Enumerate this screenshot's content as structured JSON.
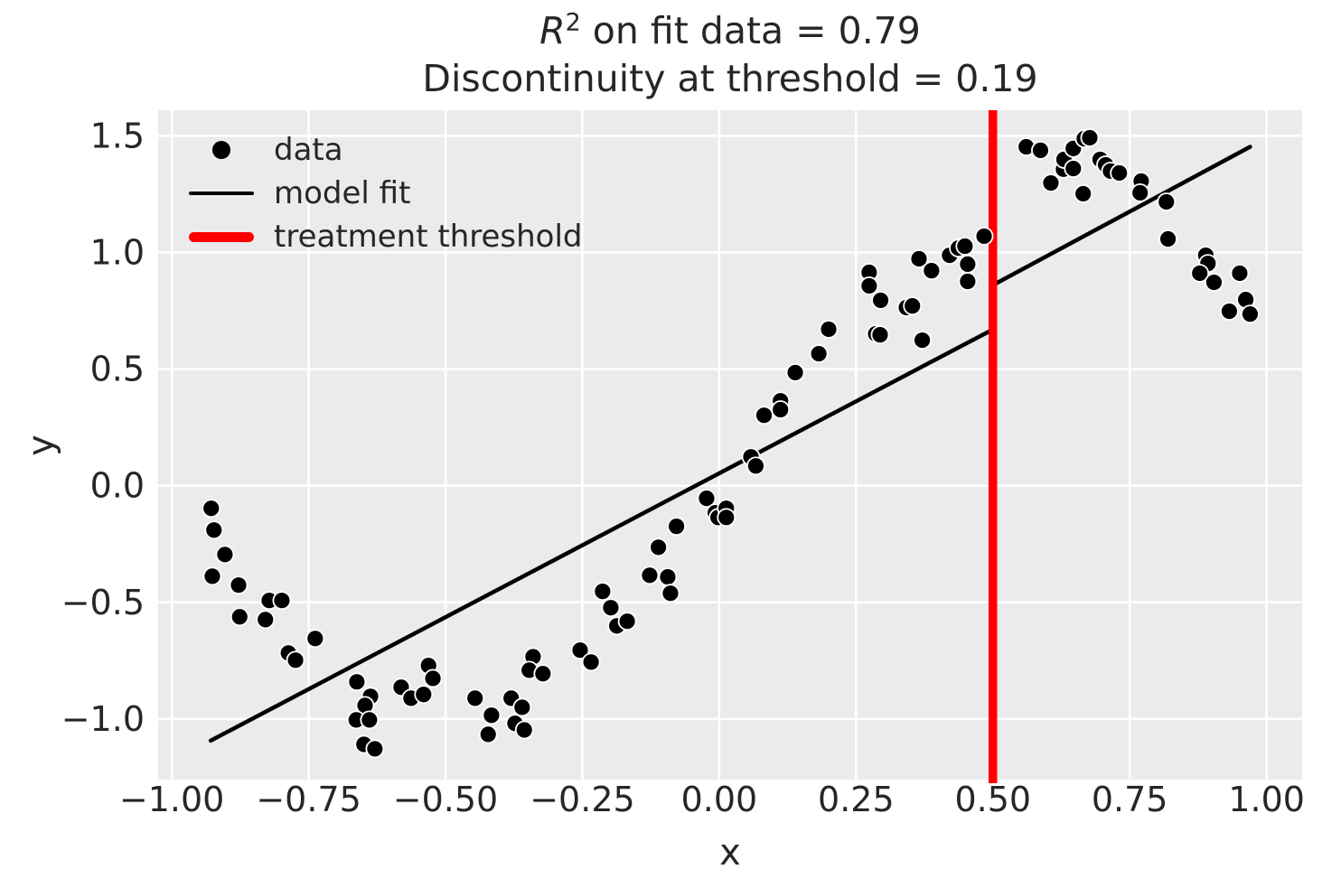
{
  "figure": {
    "title": {
      "math_var": "R",
      "exponent": "2",
      "line1_rest": " on fit data = 0.79",
      "line2": "Discontinuity at threshold = 0.19"
    }
  },
  "chart_data": {
    "type": "scatter",
    "title": "R^2 on fit data = 0.79\nDiscontinuity at threshold = 0.19",
    "r_squared": 0.79,
    "discontinuity": 0.19,
    "threshold_x": 0.5,
    "xlabel": "x",
    "ylabel": "y",
    "xlim": [
      -1.025,
      1.065
    ],
    "ylim": [
      -1.26,
      1.61
    ],
    "grid": true,
    "plot_background": "#ebebeb",
    "grid_color": "#ffffff",
    "text_color": "#262626",
    "xticks": {
      "values": [
        -1.0,
        -0.75,
        -0.5,
        -0.25,
        0.0,
        0.25,
        0.5,
        0.75,
        1.0
      ],
      "labels": [
        "−1.00",
        "−0.75",
        "−0.50",
        "−0.25",
        "0.00",
        "0.25",
        "0.50",
        "0.75",
        "1.00"
      ]
    },
    "yticks": {
      "values": [
        1.5,
        1.0,
        0.5,
        0.0,
        -0.5,
        -1.0
      ],
      "labels": [
        "1.5",
        "1.0",
        "0.5",
        "0.0",
        "−0.5",
        "−1.0"
      ]
    },
    "series": [
      {
        "name": "data",
        "type": "scatter",
        "color": "#000000",
        "marker_edge_color": "#ffffff",
        "points": [
          [
            -0.928,
            -0.097
          ],
          [
            -0.923,
            -0.19
          ],
          [
            -0.903,
            -0.295
          ],
          [
            -0.926,
            -0.388
          ],
          [
            -0.878,
            -0.426
          ],
          [
            -0.822,
            -0.492
          ],
          [
            -0.799,
            -0.492
          ],
          [
            -0.876,
            -0.562
          ],
          [
            -0.829,
            -0.574
          ],
          [
            -0.738,
            -0.655
          ],
          [
            -0.787,
            -0.717
          ],
          [
            -0.774,
            -0.748
          ],
          [
            -0.662,
            -0.841
          ],
          [
            -0.637,
            -0.903
          ],
          [
            -0.647,
            -0.942
          ],
          [
            -0.663,
            -1.004
          ],
          [
            -0.639,
            -1.004
          ],
          [
            -0.649,
            -1.109
          ],
          [
            -0.629,
            -1.128
          ],
          [
            -0.581,
            -0.864
          ],
          [
            -0.563,
            -0.911
          ],
          [
            -0.54,
            -0.895
          ],
          [
            -0.531,
            -0.771
          ],
          [
            -0.523,
            -0.826
          ],
          [
            -0.446,
            -0.911
          ],
          [
            -0.416,
            -0.984
          ],
          [
            -0.422,
            -1.066
          ],
          [
            -0.38,
            -0.911
          ],
          [
            -0.36,
            -0.95
          ],
          [
            -0.373,
            -1.019
          ],
          [
            -0.356,
            -1.047
          ],
          [
            -0.34,
            -0.733
          ],
          [
            -0.347,
            -0.791
          ],
          [
            -0.322,
            -0.806
          ],
          [
            -0.254,
            -0.705
          ],
          [
            -0.234,
            -0.756
          ],
          [
            -0.213,
            -0.453
          ],
          [
            -0.198,
            -0.523
          ],
          [
            -0.187,
            -0.601
          ],
          [
            -0.168,
            -0.581
          ],
          [
            -0.127,
            -0.384
          ],
          [
            -0.111,
            -0.264
          ],
          [
            -0.094,
            -0.391
          ],
          [
            -0.089,
            -0.461
          ],
          [
            -0.078,
            -0.174
          ],
          [
            -0.023,
            -0.054
          ],
          [
            -0.007,
            -0.116
          ],
          [
            -0.002,
            -0.136
          ],
          [
            0.013,
            -0.097
          ],
          [
            0.013,
            -0.136
          ],
          [
            0.058,
            0.124
          ],
          [
            0.067,
            0.085
          ],
          [
            0.082,
            0.302
          ],
          [
            0.112,
            0.364
          ],
          [
            0.112,
            0.326
          ],
          [
            0.139,
            0.485
          ],
          [
            0.182,
            0.566
          ],
          [
            0.2,
            0.671
          ],
          [
            0.274,
            0.915
          ],
          [
            0.274,
            0.857
          ],
          [
            0.286,
            0.651
          ],
          [
            0.294,
            0.647
          ],
          [
            0.295,
            0.795
          ],
          [
            0.342,
            0.764
          ],
          [
            0.353,
            0.771
          ],
          [
            0.365,
            0.973
          ],
          [
            0.371,
            0.624
          ],
          [
            0.388,
            0.922
          ],
          [
            0.421,
            0.988
          ],
          [
            0.437,
            1.019
          ],
          [
            0.449,
            1.027
          ],
          [
            0.454,
            0.95
          ],
          [
            0.454,
            0.876
          ],
          [
            0.484,
            1.07
          ],
          [
            0.561,
            1.453
          ],
          [
            0.587,
            1.438
          ],
          [
            0.606,
            1.298
          ],
          [
            0.629,
            1.357
          ],
          [
            0.63,
            1.399
          ],
          [
            0.647,
            1.446
          ],
          [
            0.647,
            1.36
          ],
          [
            0.665,
            1.252
          ],
          [
            0.667,
            1.488
          ],
          [
            0.677,
            1.492
          ],
          [
            0.696,
            1.399
          ],
          [
            0.706,
            1.376
          ],
          [
            0.715,
            1.349
          ],
          [
            0.731,
            1.341
          ],
          [
            0.771,
            1.306
          ],
          [
            0.769,
            1.256
          ],
          [
            0.817,
            1.217
          ],
          [
            0.82,
            1.058
          ],
          [
            0.889,
            0.988
          ],
          [
            0.893,
            0.953
          ],
          [
            0.878,
            0.911
          ],
          [
            0.904,
            0.872
          ],
          [
            0.951,
            0.911
          ],
          [
            0.962,
            0.798
          ],
          [
            0.932,
            0.748
          ],
          [
            0.97,
            0.736
          ]
        ]
      },
      {
        "name": "model fit",
        "type": "line",
        "color": "#000000",
        "segments": [
          [
            [
              -0.929,
              -1.093
            ],
            [
              0.5,
              0.67
            ]
          ],
          [
            [
              0.5,
              0.86
            ],
            [
              0.97,
              1.453
            ]
          ]
        ]
      },
      {
        "name": "treatment threshold",
        "type": "vline",
        "color": "#ff0000",
        "x": 0.5
      }
    ],
    "legend": {
      "position": "upper left",
      "entries": [
        {
          "label": "data",
          "kind": "marker",
          "color": "#000000"
        },
        {
          "label": "model fit",
          "kind": "line",
          "color": "#000000"
        },
        {
          "label": "treatment threshold",
          "kind": "thick-line",
          "color": "#ff0000"
        }
      ]
    }
  }
}
